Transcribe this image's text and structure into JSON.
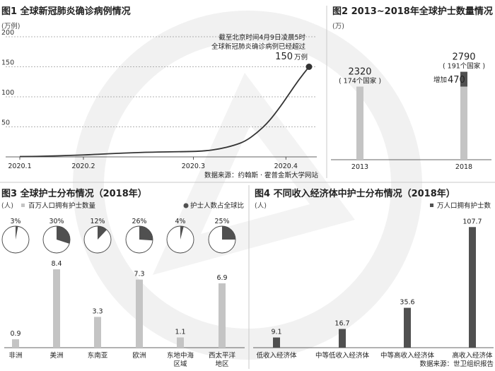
{
  "charts": {
    "fig1": {
      "title": "图1 全球新冠肺炎确诊病例情况",
      "unit": "(万例)",
      "chart_data": {
        "type": "line",
        "title": "全球新冠肺炎确诊病例情况",
        "ylabel": "(万例)",
        "ylim": [
          0,
          200
        ],
        "yticks": [
          50,
          100,
          150,
          200
        ],
        "xticks": [
          "2020.1",
          "2020.2",
          "2020.3",
          "2020.4"
        ],
        "x_index": [
          0,
          1.1,
          3,
          4.6
        ],
        "series": [
          {
            "name": "确诊病例",
            "x": [
              0,
              0.4,
              0.9,
              1.3,
              1.8,
              2.3,
              2.7,
              3.0,
              3.2,
              3.45,
              3.7,
              3.9,
              4.1,
              4.3,
              4.5,
              4.65,
              4.82,
              5.0
            ],
            "values": [
              0.5,
              1,
              2.5,
              4,
              6.5,
              8,
              8.5,
              9,
              10,
              13,
              19,
              26,
              40,
              58,
              83,
              104,
              128,
              150
            ]
          }
        ],
        "annotation_lines": [
          "截至北京时间4月9日凌晨5时",
          "全球新冠肺炎确诊病例已经超过"
        ],
        "annotation_value": "150",
        "annotation_unit": "万例",
        "source": "数据来源：约翰斯 · 霍普金斯大学网站"
      }
    },
    "fig2": {
      "title": "图2 2013~2018年全球护士数量情况",
      "unit": "(万)",
      "chart_data": {
        "type": "bar",
        "categories": [
          "2013",
          "2018"
        ],
        "values": [
          2320,
          2790
        ],
        "base_2018": 2320,
        "increase": 470,
        "value_labels": [
          "2320",
          "2790"
        ],
        "country_notes": [
          "( 174个国家 )",
          "( 191个国家 )"
        ],
        "increase_label": "增加",
        "increase_value": "470"
      }
    },
    "fig3": {
      "title": "图3 全球护士分布情况（2018年）",
      "unit": "(人)",
      "legend_bar": "百万人口拥有护士数量",
      "legend_pie": "护士人数占全球比",
      "chart_data": {
        "type": "bar",
        "categories": [
          "非洲",
          "美洲",
          "东南亚",
          "欧洲",
          "东地中海区域",
          "西太平洋地区"
        ],
        "category_lines": [
          [
            "非洲"
          ],
          [
            "美洲"
          ],
          [
            "东南亚"
          ],
          [
            "欧洲"
          ],
          [
            "东地中海",
            "区域"
          ],
          [
            "西太平洋",
            "地区"
          ]
        ],
        "values": [
          0.9,
          8.4,
          3.3,
          7.3,
          1.1,
          6.9
        ],
        "value_labels": [
          "0.9",
          "8.4",
          "3.3",
          "7.3",
          "1.1",
          "6.9"
        ],
        "share_percent": [
          3,
          30,
          12,
          26,
          4,
          25
        ],
        "share_labels": [
          "3%",
          "30%",
          "12%",
          "26%",
          "4%",
          "25%"
        ]
      }
    },
    "fig4": {
      "title": "图4 不同收入经济体中护士分布情况（2018年）",
      "unit": "(人)",
      "legend": "万人口拥有护士数",
      "source": "数据来源：世卫组织报告",
      "chart_data": {
        "type": "bar",
        "categories": [
          "低收入经济体",
          "中等低收入经济体",
          "中等高收入经济体",
          "高收入经济体"
        ],
        "values": [
          9.1,
          16.7,
          35.6,
          107.7
        ],
        "value_labels": [
          "9.1",
          "16.7",
          "35.6",
          "107.7"
        ]
      }
    }
  },
  "colors": {
    "line": "#333333",
    "dark_bar": "#505050",
    "light_bar": "#c4c4c4",
    "grid": "#9a9a9a",
    "text": "#222222",
    "watermark": "#efefef"
  }
}
